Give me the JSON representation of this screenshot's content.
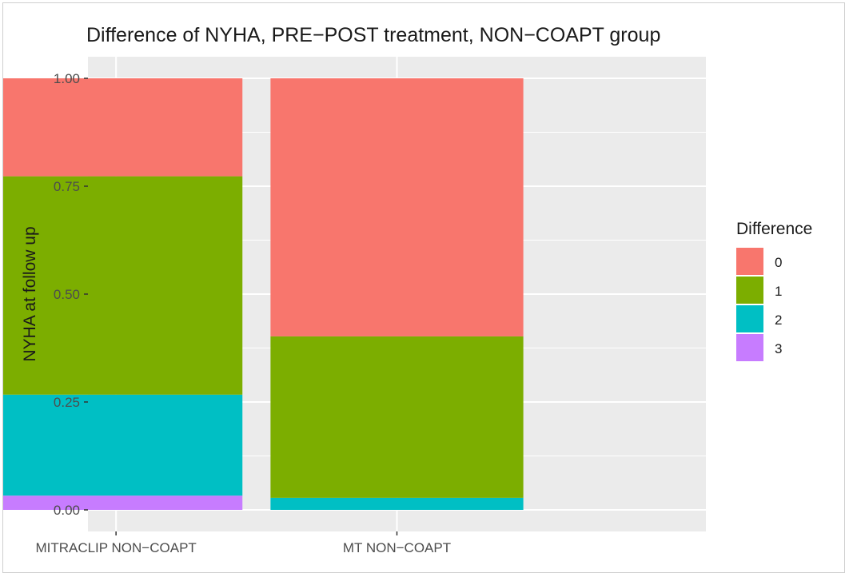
{
  "chart_data": {
    "type": "bar",
    "stacked": true,
    "title": "Difference of NYHA, PRE−POST treatment, NON−COAPT group",
    "xlabel": "",
    "ylabel": "NYHA at follow up",
    "ylim": [
      0,
      1.05
    ],
    "yticks": [
      "0.00",
      "0.25",
      "0.50",
      "0.75",
      "1.00"
    ],
    "ytick_values": [
      0,
      0.25,
      0.5,
      0.75,
      1.0
    ],
    "categories": [
      "MITRACLIP NON−COAPT",
      "MT NON−COAPT"
    ],
    "series": [
      {
        "name": "3",
        "color": "#C77CFF",
        "values": [
          0.033,
          0.0
        ]
      },
      {
        "name": "2",
        "color": "#00BFC4",
        "values": [
          0.234,
          0.028
        ]
      },
      {
        "name": "1",
        "color": "#7CAE00",
        "values": [
          0.506,
          0.374
        ]
      },
      {
        "name": "0",
        "color": "#F8766D",
        "values": [
          0.227,
          0.598
        ]
      }
    ],
    "legend": {
      "title": "Difference",
      "position": "right",
      "order": [
        "0",
        "1",
        "2",
        "3"
      ]
    },
    "grid": true,
    "panel_background": "#EBEBEB"
  }
}
